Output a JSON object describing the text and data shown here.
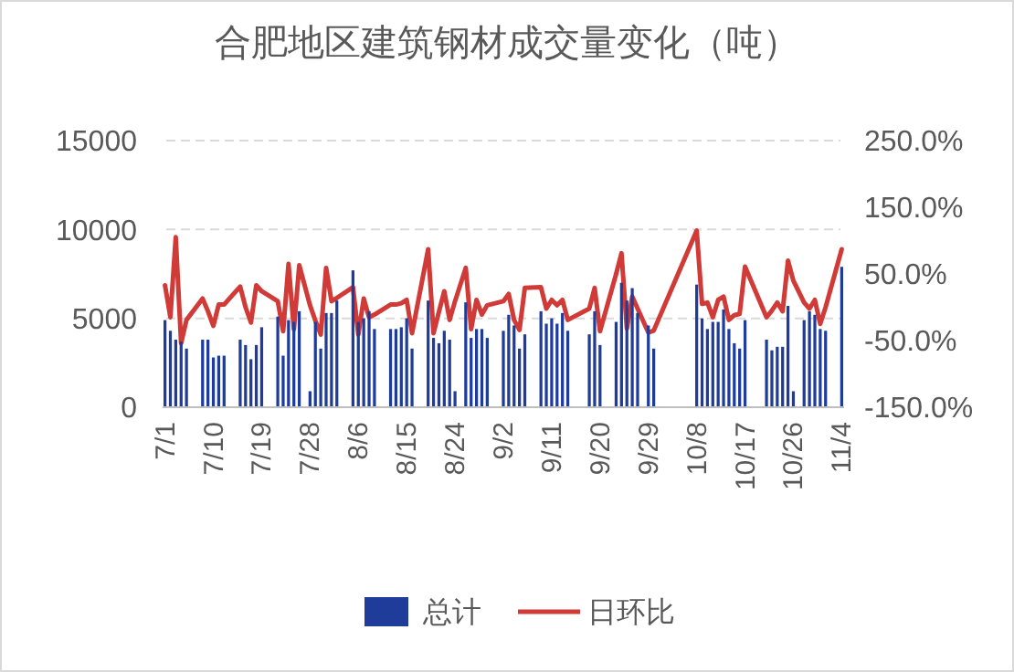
{
  "chart_data": {
    "type": "bar",
    "title": "合肥地区建筑钢材成交量变化（吨）",
    "categories": [
      "7/1",
      null,
      null,
      null,
      null,
      null,
      null,
      null,
      null,
      "7/10",
      null,
      null,
      null,
      null,
      null,
      null,
      null,
      null,
      "7/19",
      null,
      null,
      null,
      null,
      null,
      null,
      null,
      null,
      "7/28",
      null,
      null,
      null,
      null,
      null,
      null,
      null,
      null,
      "8/6",
      null,
      null,
      null,
      null,
      null,
      null,
      null,
      null,
      "8/15",
      null,
      null,
      null,
      null,
      null,
      null,
      null,
      null,
      "8/24",
      null,
      null,
      null,
      null,
      null,
      null,
      null,
      null,
      "9/2",
      null,
      null,
      null,
      null,
      null,
      null,
      null,
      null,
      "9/11",
      null,
      null,
      null,
      null,
      null,
      null,
      null,
      null,
      "9/20",
      null,
      null,
      null,
      null,
      null,
      null,
      null,
      null,
      "9/29",
      null,
      null,
      null,
      null,
      null,
      null,
      null,
      null,
      "10/8",
      null,
      null,
      null,
      null,
      null,
      null,
      null,
      null,
      "10/17",
      null,
      null,
      null,
      null,
      null,
      null,
      null,
      null,
      "10/26",
      null,
      null,
      null,
      null,
      null,
      null,
      null,
      null,
      "11/4"
    ],
    "series": [
      {
        "name": "总计",
        "color": "#1f3c9b",
        "values": [
          4900,
          4300,
          3800,
          3700,
          3300,
          null,
          null,
          3800,
          3800,
          2800,
          2900,
          2900,
          null,
          null,
          3800,
          3500,
          2700,
          3500,
          4500,
          null,
          null,
          5100,
          2900,
          4900,
          4800,
          5400,
          null,
          900,
          4800,
          3300,
          5300,
          5300,
          6000,
          null,
          null,
          7700,
          4800,
          5000,
          5400,
          4400,
          null,
          null,
          4400,
          4400,
          4500,
          5000,
          3300,
          null,
          null,
          6000,
          3900,
          3600,
          4300,
          3800,
          900,
          null,
          5900,
          3900,
          4400,
          4400,
          3900,
          null,
          null,
          4300,
          5200,
          4600,
          3300,
          4100,
          null,
          null,
          5400,
          4700,
          5000,
          4700,
          5300,
          4300,
          null,
          null,
          null,
          4100,
          5400,
          3500,
          null,
          null,
          4800,
          7000,
          6000,
          6700,
          5300,
          null,
          4600,
          3300,
          null,
          null,
          null,
          null,
          null,
          null,
          null,
          6900,
          5000,
          4400,
          4800,
          4800,
          5500,
          4400,
          3600,
          3300,
          4900,
          null,
          null,
          null,
          3800,
          3200,
          3400,
          3400,
          5700,
          900,
          null,
          4900,
          5400,
          5200,
          4400,
          4300,
          null,
          null,
          7900
        ]
      },
      {
        "name": "日环比",
        "type": "line",
        "axis": "y2",
        "color": "#d03a37",
        "values": [
          33,
          -15,
          105,
          -54,
          -19,
          null,
          null,
          13,
          -6,
          -28,
          4,
          4,
          null,
          null,
          31,
          0,
          -23,
          33,
          24,
          null,
          null,
          9,
          -36,
          65,
          -33,
          63,
          null,
          3,
          -20,
          -41,
          59,
          9,
          14,
          null,
          null,
          30,
          -41,
          13,
          -15,
          -11,
          null,
          null,
          4,
          4,
          6,
          11,
          -39,
          null,
          null,
          87,
          -39,
          -7,
          24,
          -19,
          9,
          null,
          59,
          -33,
          11,
          -11,
          3,
          null,
          null,
          9,
          20,
          -19,
          -34,
          29,
          null,
          null,
          30,
          -2,
          11,
          3,
          11,
          -19,
          null,
          null,
          null,
          -2,
          29,
          -36,
          null,
          null,
          50,
          81,
          -32,
          16,
          -2,
          null,
          -38,
          -35,
          null,
          null,
          null,
          null,
          null,
          null,
          null,
          115,
          5,
          7,
          -15,
          11,
          16,
          -19,
          -12,
          -10,
          61,
          null,
          null,
          null,
          -15,
          -5,
          7,
          -6,
          70,
          40,
          null,
          7,
          -2,
          11,
          -25,
          0,
          null,
          null,
          87
        ]
      }
    ],
    "ylim": [
      0,
      15000
    ],
    "yticks": [
      0,
      5000,
      10000,
      15000
    ],
    "y2lim": [
      -150,
      250
    ],
    "y2ticks": [
      {
        "value": -150,
        "label": "-150.0%"
      },
      {
        "value": -50,
        "label": "-50.0%"
      },
      {
        "value": 50,
        "label": "50.0%"
      },
      {
        "value": 150,
        "label": "150.0%"
      },
      {
        "value": 250,
        "label": "250.0%"
      }
    ],
    "grid": "y",
    "legend": "bottom"
  }
}
